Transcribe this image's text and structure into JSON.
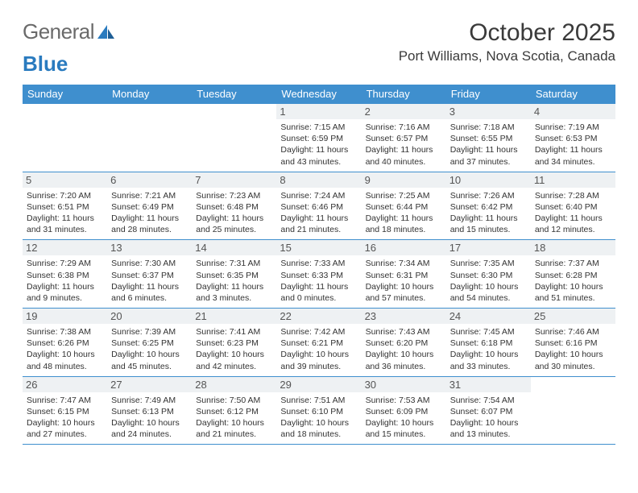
{
  "logo": {
    "text1": "General",
    "text2": "Blue"
  },
  "title": "October 2025",
  "location": "Port Williams, Nova Scotia, Canada",
  "colors": {
    "header_bg": "#3f8fce",
    "header_text": "#ffffff",
    "daynum_bg": "#eef1f3",
    "row_border": "#3f8fce",
    "text": "#333333",
    "logo_blue": "#2a7bbf"
  },
  "fonts": {
    "title_size": 30,
    "location_size": 17,
    "header_size": 13,
    "daynum_size": 13,
    "body_size": 10.5
  },
  "weekdays": [
    "Sunday",
    "Monday",
    "Tuesday",
    "Wednesday",
    "Thursday",
    "Friday",
    "Saturday"
  ],
  "weeks": [
    [
      {
        "n": "",
        "sr": "",
        "ss": "",
        "dl": ""
      },
      {
        "n": "",
        "sr": "",
        "ss": "",
        "dl": ""
      },
      {
        "n": "",
        "sr": "",
        "ss": "",
        "dl": ""
      },
      {
        "n": "1",
        "sr": "7:15 AM",
        "ss": "6:59 PM",
        "dl": "11 hours and 43 minutes."
      },
      {
        "n": "2",
        "sr": "7:16 AM",
        "ss": "6:57 PM",
        "dl": "11 hours and 40 minutes."
      },
      {
        "n": "3",
        "sr": "7:18 AM",
        "ss": "6:55 PM",
        "dl": "11 hours and 37 minutes."
      },
      {
        "n": "4",
        "sr": "7:19 AM",
        "ss": "6:53 PM",
        "dl": "11 hours and 34 minutes."
      }
    ],
    [
      {
        "n": "5",
        "sr": "7:20 AM",
        "ss": "6:51 PM",
        "dl": "11 hours and 31 minutes."
      },
      {
        "n": "6",
        "sr": "7:21 AM",
        "ss": "6:49 PM",
        "dl": "11 hours and 28 minutes."
      },
      {
        "n": "7",
        "sr": "7:23 AM",
        "ss": "6:48 PM",
        "dl": "11 hours and 25 minutes."
      },
      {
        "n": "8",
        "sr": "7:24 AM",
        "ss": "6:46 PM",
        "dl": "11 hours and 21 minutes."
      },
      {
        "n": "9",
        "sr": "7:25 AM",
        "ss": "6:44 PM",
        "dl": "11 hours and 18 minutes."
      },
      {
        "n": "10",
        "sr": "7:26 AM",
        "ss": "6:42 PM",
        "dl": "11 hours and 15 minutes."
      },
      {
        "n": "11",
        "sr": "7:28 AM",
        "ss": "6:40 PM",
        "dl": "11 hours and 12 minutes."
      }
    ],
    [
      {
        "n": "12",
        "sr": "7:29 AM",
        "ss": "6:38 PM",
        "dl": "11 hours and 9 minutes."
      },
      {
        "n": "13",
        "sr": "7:30 AM",
        "ss": "6:37 PM",
        "dl": "11 hours and 6 minutes."
      },
      {
        "n": "14",
        "sr": "7:31 AM",
        "ss": "6:35 PM",
        "dl": "11 hours and 3 minutes."
      },
      {
        "n": "15",
        "sr": "7:33 AM",
        "ss": "6:33 PM",
        "dl": "11 hours and 0 minutes."
      },
      {
        "n": "16",
        "sr": "7:34 AM",
        "ss": "6:31 PM",
        "dl": "10 hours and 57 minutes."
      },
      {
        "n": "17",
        "sr": "7:35 AM",
        "ss": "6:30 PM",
        "dl": "10 hours and 54 minutes."
      },
      {
        "n": "18",
        "sr": "7:37 AM",
        "ss": "6:28 PM",
        "dl": "10 hours and 51 minutes."
      }
    ],
    [
      {
        "n": "19",
        "sr": "7:38 AM",
        "ss": "6:26 PM",
        "dl": "10 hours and 48 minutes."
      },
      {
        "n": "20",
        "sr": "7:39 AM",
        "ss": "6:25 PM",
        "dl": "10 hours and 45 minutes."
      },
      {
        "n": "21",
        "sr": "7:41 AM",
        "ss": "6:23 PM",
        "dl": "10 hours and 42 minutes."
      },
      {
        "n": "22",
        "sr": "7:42 AM",
        "ss": "6:21 PM",
        "dl": "10 hours and 39 minutes."
      },
      {
        "n": "23",
        "sr": "7:43 AM",
        "ss": "6:20 PM",
        "dl": "10 hours and 36 minutes."
      },
      {
        "n": "24",
        "sr": "7:45 AM",
        "ss": "6:18 PM",
        "dl": "10 hours and 33 minutes."
      },
      {
        "n": "25",
        "sr": "7:46 AM",
        "ss": "6:16 PM",
        "dl": "10 hours and 30 minutes."
      }
    ],
    [
      {
        "n": "26",
        "sr": "7:47 AM",
        "ss": "6:15 PM",
        "dl": "10 hours and 27 minutes."
      },
      {
        "n": "27",
        "sr": "7:49 AM",
        "ss": "6:13 PM",
        "dl": "10 hours and 24 minutes."
      },
      {
        "n": "28",
        "sr": "7:50 AM",
        "ss": "6:12 PM",
        "dl": "10 hours and 21 minutes."
      },
      {
        "n": "29",
        "sr": "7:51 AM",
        "ss": "6:10 PM",
        "dl": "10 hours and 18 minutes."
      },
      {
        "n": "30",
        "sr": "7:53 AM",
        "ss": "6:09 PM",
        "dl": "10 hours and 15 minutes."
      },
      {
        "n": "31",
        "sr": "7:54 AM",
        "ss": "6:07 PM",
        "dl": "10 hours and 13 minutes."
      },
      {
        "n": "",
        "sr": "",
        "ss": "",
        "dl": ""
      }
    ]
  ],
  "labels": {
    "sunrise": "Sunrise:",
    "sunset": "Sunset:",
    "daylight": "Daylight:"
  }
}
